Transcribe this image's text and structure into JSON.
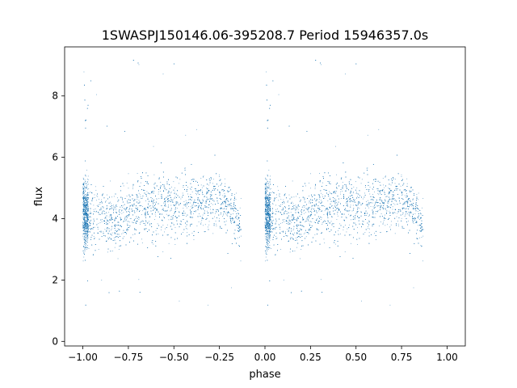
{
  "chart_data": {
    "type": "scatter",
    "title": "1SWASPJ150146.06-395208.7 Period 15946357.0s",
    "xlabel": "phase",
    "ylabel": "flux",
    "xlim": [
      -1.1,
      1.1
    ],
    "ylim": [
      -0.15,
      9.6
    ],
    "xticks": [
      -1.0,
      -0.75,
      -0.5,
      -0.25,
      0.0,
      0.25,
      0.5,
      0.75,
      1.0
    ],
    "xtick_labels": [
      "−1.00",
      "−0.75",
      "−0.50",
      "−0.25",
      "0.00",
      "0.25",
      "0.50",
      "0.75",
      "1.00"
    ],
    "yticks": [
      0,
      2,
      4,
      6,
      8
    ],
    "ytick_labels": [
      "0",
      "2",
      "4",
      "6",
      "8"
    ],
    "grid": false,
    "legend": "none",
    "marker_color": "#1f77b4",
    "series": [
      {
        "phase_profile": {
          "x": [
            -1.0,
            -0.95,
            -0.9,
            -0.85,
            -0.8,
            -0.75,
            -0.7,
            -0.65,
            -0.6,
            -0.55,
            -0.5,
            -0.45,
            -0.4,
            -0.35,
            -0.3,
            -0.25,
            -0.2,
            -0.15
          ],
          "y_center": [
            4.2,
            4.1,
            4.1,
            4.0,
            3.9,
            4.2,
            4.3,
            4.4,
            4.4,
            4.5,
            4.4,
            4.5,
            4.4,
            4.6,
            4.7,
            4.6,
            4.4,
            3.8
          ],
          "y_low": [
            2.8,
            2.9,
            2.8,
            2.7,
            2.7,
            2.9,
            3.0,
            3.1,
            3.1,
            3.2,
            3.1,
            3.3,
            3.2,
            3.4,
            3.6,
            3.4,
            3.3,
            2.8
          ],
          "y_high": [
            6.2,
            5.8,
            5.6,
            5.5,
            5.6,
            5.8,
            5.9,
            6.0,
            6.1,
            6.3,
            6.4,
            6.5,
            6.0,
            6.0,
            5.8,
            5.8,
            5.6,
            4.8
          ]
        },
        "gaps": [
          [
            -0.13,
            -0.05
          ],
          [
            0.87,
            0.95
          ]
        ]
      }
    ]
  }
}
